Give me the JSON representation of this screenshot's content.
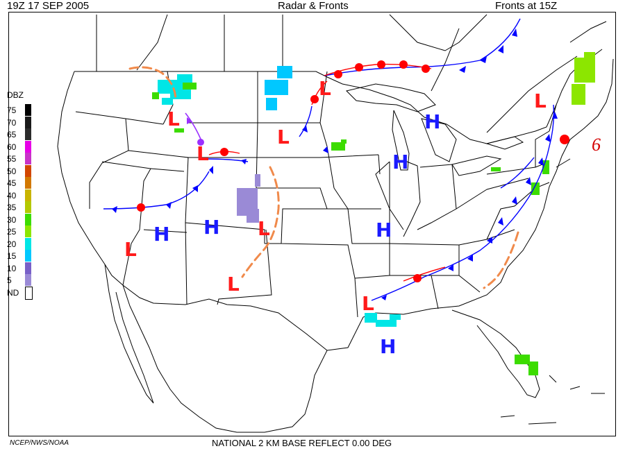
{
  "header": {
    "left": "19Z  17 SEP  2005",
    "center": "Radar & Fronts",
    "right": "Fronts at 15Z"
  },
  "legend": {
    "title": "DBZ",
    "items": [
      {
        "label": "75",
        "color": "#000000"
      },
      {
        "label": "70",
        "color": "#1a1a1a"
      },
      {
        "label": "65",
        "color": "#2b2b2b"
      },
      {
        "label": "60",
        "color": "#e600e6"
      },
      {
        "label": "55",
        "color": "#c832c8"
      },
      {
        "label": "50",
        "color": "#d24600"
      },
      {
        "label": "45",
        "color": "#d27800"
      },
      {
        "label": "40",
        "color": "#c8b400"
      },
      {
        "label": "35",
        "color": "#b4c800"
      },
      {
        "label": "30",
        "color": "#3cdc00"
      },
      {
        "label": "25",
        "color": "#8ce600"
      },
      {
        "label": "20",
        "color": "#00e6e6"
      },
      {
        "label": "15",
        "color": "#00c8ff"
      },
      {
        "label": "10",
        "color": "#7860c8"
      },
      {
        "label": "5",
        "color": "#9a8ad6"
      },
      {
        "label": "ND",
        "color": "#ffffff"
      }
    ]
  },
  "pressure_centers": [
    {
      "type": "L",
      "id": "l-montana-south"
    },
    {
      "type": "L",
      "id": "l-idaho"
    },
    {
      "type": "L",
      "id": "l-south-dakota"
    },
    {
      "type": "L",
      "id": "l-minnesota"
    },
    {
      "type": "L",
      "id": "l-nevada"
    },
    {
      "type": "L",
      "id": "l-new-mexico"
    },
    {
      "type": "L",
      "id": "l-texas"
    },
    {
      "type": "L",
      "id": "l-louisiana"
    },
    {
      "type": "L",
      "id": "l-maine"
    },
    {
      "type": "H",
      "id": "h-michigan"
    },
    {
      "type": "H",
      "id": "h-illinois"
    },
    {
      "type": "H",
      "id": "h-utah"
    },
    {
      "type": "H",
      "id": "h-colorado"
    },
    {
      "type": "H",
      "id": "h-arkansas"
    },
    {
      "type": "H",
      "id": "h-gulf"
    }
  ],
  "annotation_six": "6",
  "colors": {
    "cold_front": "#0000ff",
    "warm_front": "#ff0000",
    "trough": "#f08a4b",
    "high": "#1a1aff",
    "low": "#ff1a1a"
  },
  "footer": {
    "credit": "NCEP/NWS/NOAA",
    "product": "NATIONAL 2 KM BASE REFLECT 0.00 DEG"
  }
}
